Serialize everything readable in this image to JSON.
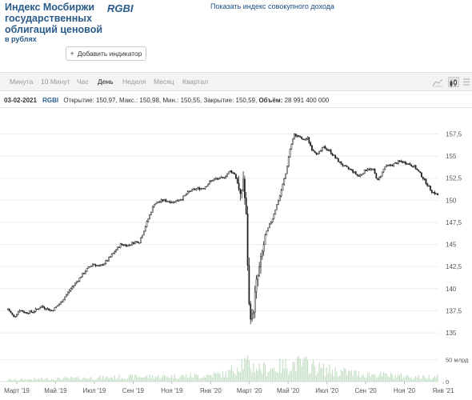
{
  "header": {
    "title": "Индекс Мосбиржи государственных облигаций ценовой",
    "subtitle": "в рублях",
    "ticker": "RGBI",
    "total_return_link": "Показать индекс совокупного дохода",
    "add_indicator": "Добавить индикатор"
  },
  "periods": [
    {
      "label": "Минута",
      "active": false
    },
    {
      "label": "10 Минут",
      "active": false
    },
    {
      "label": "Час",
      "active": false
    },
    {
      "label": "День",
      "active": true
    },
    {
      "label": "Неделя",
      "active": false
    },
    {
      "label": "Месяц",
      "active": false
    },
    {
      "label": "Квартал",
      "active": false
    }
  ],
  "tools": [
    {
      "icon": "area-chart-icon",
      "active": false
    },
    {
      "icon": "candles-icon",
      "active": true
    },
    {
      "icon": "settings-icon",
      "active": false
    }
  ],
  "info": {
    "date": "03-02-2021",
    "ticker": "RGBI",
    "open_label": "Открытие:",
    "open": "150,97",
    "max_label": "Макс.:",
    "max": "150,98",
    "min_label": "Мин.:",
    "min": "150,55",
    "close_label": "Закрытие:",
    "close": "150,59",
    "volume_label": "Объём:",
    "volume": "28 991 400 000"
  },
  "colors": {
    "up": "#ffffff",
    "down": "#1f1f1f",
    "outline": "#1f1f1f",
    "grid": "#ededed",
    "axis_text": "#555555",
    "volume": "#c5dfc5",
    "active_tool": "#e2e2e2"
  },
  "chart_data": {
    "type": "candlestick",
    "frequency": "daily",
    "x_tick_labels": [
      "Март '19",
      "Май '19",
      "Июл '19",
      "Сен '19",
      "Ноя '19",
      "Янв '20",
      "Март '20",
      "Май '20",
      "Июл '20",
      "Сен '20",
      "Ноя '20",
      "Янв '21"
    ],
    "y_ticks": [
      135,
      137.5,
      140,
      142.5,
      145,
      147.5,
      150,
      152.5,
      155,
      157.5
    ],
    "y_tick_labels": [
      "135",
      "137,5",
      "140",
      "142,5",
      "145",
      "147,5",
      "150",
      "152,5",
      "155",
      "157,5"
    ],
    "ylim": [
      134.2,
      159.8
    ],
    "volume_axis_labels": [
      "50 млрд",
      "0"
    ],
    "volume_max": 75,
    "last_close": 150.59,
    "price_path": [
      [
        0,
        137.7
      ],
      [
        4,
        136.8
      ],
      [
        8,
        137.6
      ],
      [
        12,
        137.3
      ],
      [
        17,
        137.4
      ],
      [
        23,
        138.0
      ],
      [
        30,
        137.5
      ],
      [
        36,
        138.4
      ],
      [
        42,
        139.8
      ],
      [
        48,
        141.0
      ],
      [
        54,
        142.2
      ],
      [
        58,
        142.8
      ],
      [
        63,
        142.5
      ],
      [
        68,
        143.2
      ],
      [
        72,
        144.0
      ],
      [
        77,
        145.0
      ],
      [
        82,
        144.9
      ],
      [
        87,
        145.3
      ],
      [
        90,
        145.3
      ],
      [
        95,
        147.5
      ],
      [
        100,
        149.6
      ],
      [
        106,
        150.0
      ],
      [
        113,
        149.8
      ],
      [
        119,
        150.2
      ],
      [
        124,
        151.0
      ],
      [
        129,
        151.3
      ],
      [
        134,
        151.4
      ],
      [
        139,
        152.2
      ],
      [
        142,
        152.4
      ],
      [
        147,
        152.5
      ],
      [
        152,
        153.3
      ],
      [
        155,
        153.0
      ],
      [
        157,
        152.0
      ],
      [
        159,
        150.0
      ],
      [
        161,
        152.5
      ],
      [
        163,
        148.0
      ],
      [
        165,
        138.0
      ],
      [
        167,
        136.6
      ],
      [
        170,
        140.5
      ],
      [
        173,
        143.0
      ],
      [
        176,
        146.0
      ],
      [
        181,
        148.0
      ],
      [
        186,
        150.5
      ],
      [
        190,
        153.0
      ],
      [
        193,
        155.8
      ],
      [
        196,
        157.4
      ],
      [
        199,
        157.2
      ],
      [
        202,
        156.8
      ],
      [
        205,
        157.0
      ],
      [
        208,
        155.8
      ],
      [
        212,
        155.2
      ],
      [
        216,
        156.0
      ],
      [
        220,
        155.6
      ],
      [
        225,
        154.6
      ],
      [
        230,
        153.8
      ],
      [
        235,
        153.4
      ],
      [
        240,
        152.7
      ],
      [
        246,
        153.6
      ],
      [
        250,
        153.4
      ],
      [
        253,
        152.2
      ],
      [
        258,
        153.8
      ],
      [
        263,
        154.0
      ],
      [
        268,
        154.4
      ],
      [
        273,
        154.2
      ],
      [
        278,
        153.8
      ],
      [
        282,
        153.0
      ],
      [
        286,
        152.0
      ],
      [
        290,
        151.0
      ],
      [
        294,
        150.6
      ]
    ],
    "volume_profile": [
      [
        0,
        5
      ],
      [
        40,
        9
      ],
      [
        90,
        14
      ],
      [
        130,
        16
      ],
      [
        150,
        22
      ],
      [
        160,
        55
      ],
      [
        168,
        42
      ],
      [
        178,
        35
      ],
      [
        195,
        50
      ],
      [
        205,
        48
      ],
      [
        215,
        35
      ],
      [
        240,
        22
      ],
      [
        270,
        16
      ],
      [
        285,
        12
      ],
      [
        294,
        18
      ]
    ]
  }
}
